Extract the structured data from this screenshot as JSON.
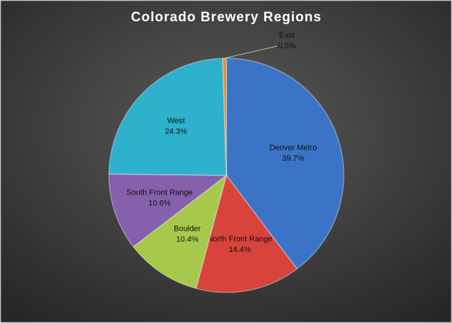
{
  "chart_data": {
    "type": "pie",
    "title": "Colorado Brewery Regions",
    "categories": [
      "Denver Metro",
      "North Front Range",
      "Boulder",
      "South Front Range",
      "West",
      "East"
    ],
    "values": [
      39.7,
      14.4,
      10.4,
      10.6,
      24.3,
      0.5
    ],
    "value_labels": [
      "39.7%",
      "14.4%",
      "10.4%",
      "10.6%",
      "24.3%",
      "0.5%"
    ],
    "colors": [
      "#3b74c6",
      "#d8433c",
      "#a6c94c",
      "#8560ac",
      "#2db1cc",
      "#ef8a26"
    ]
  }
}
